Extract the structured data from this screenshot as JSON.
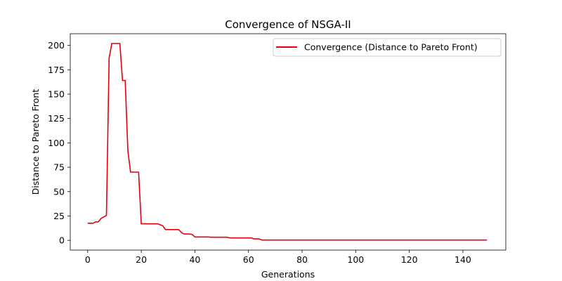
{
  "chart_data": {
    "type": "line",
    "title": "Convergence of NSGA-II",
    "xlabel": "Generations",
    "ylabel": "Distance to Pareto Front",
    "xlim": [
      -6.5,
      156
    ],
    "ylim": [
      -10,
      212
    ],
    "xticks": [
      0,
      20,
      40,
      60,
      80,
      100,
      120,
      140
    ],
    "yticks": [
      0,
      25,
      50,
      75,
      100,
      125,
      150,
      175,
      200
    ],
    "grid": false,
    "legend_position": "upper right",
    "series": [
      {
        "name": "Convergence (Distance to Pareto Front)",
        "color": "#e8000b",
        "x": [
          0,
          1,
          2,
          3,
          4,
          5,
          6,
          7,
          8,
          9,
          10,
          11,
          12,
          13,
          14,
          15,
          16,
          17,
          18,
          19,
          20,
          21,
          22,
          23,
          24,
          25,
          26,
          27,
          28,
          29,
          30,
          31,
          32,
          33,
          34,
          35,
          36,
          37,
          38,
          39,
          40,
          41,
          42,
          43,
          44,
          45,
          46,
          47,
          48,
          49,
          50,
          51,
          52,
          53,
          54,
          55,
          56,
          57,
          58,
          59,
          60,
          61,
          62,
          63,
          64,
          65,
          66,
          67,
          68,
          69,
          70,
          71,
          72,
          73,
          74,
          75,
          76,
          77,
          78,
          79,
          80,
          81,
          82,
          83,
          84,
          85,
          86,
          87,
          88,
          89,
          90,
          91,
          92,
          93,
          94,
          95,
          96,
          97,
          98,
          99,
          100,
          101,
          102,
          103,
          104,
          105,
          106,
          107,
          108,
          109,
          110,
          111,
          112,
          113,
          114,
          115,
          116,
          117,
          118,
          119,
          120,
          121,
          122,
          123,
          124,
          125,
          126,
          127,
          128,
          129,
          130,
          131,
          132,
          133,
          134,
          135,
          136,
          137,
          138,
          139,
          140,
          141,
          142,
          143,
          144,
          145,
          146,
          147,
          148,
          149
        ],
        "y": [
          17.5,
          17.5,
          17.5,
          19,
          19,
          22.5,
          24,
          25.5,
          187,
          202,
          202,
          202,
          202,
          164,
          164,
          92,
          70,
          70,
          70,
          70,
          17,
          17,
          17,
          17,
          17,
          17,
          17,
          16,
          15,
          11,
          11,
          11,
          11,
          11,
          11,
          8,
          6.5,
          6.5,
          6.5,
          6,
          3.5,
          3.5,
          3.5,
          3.5,
          3.5,
          3.5,
          3.2,
          3.2,
          3.2,
          3.2,
          3.2,
          3.2,
          3.2,
          2.5,
          2.5,
          2.5,
          2.5,
          2.5,
          2.5,
          2.5,
          2.5,
          2.5,
          1.5,
          1.5,
          1.5,
          0.3,
          0.3,
          0.3,
          0.3,
          0.3,
          0.3,
          0.3,
          0.3,
          0.3,
          0.3,
          0.3,
          0.3,
          0.3,
          0.3,
          0.3,
          0.3,
          0.3,
          0.3,
          0.3,
          0.3,
          0.3,
          0.3,
          0.3,
          0.3,
          0.3,
          0.3,
          0.3,
          0.3,
          0.3,
          0.3,
          0.3,
          0.3,
          0.3,
          0.3,
          0.3,
          0.3,
          0.3,
          0.3,
          0.3,
          0.3,
          0.3,
          0.3,
          0.3,
          0.3,
          0.3,
          0.3,
          0.3,
          0.3,
          0.3,
          0.3,
          0.3,
          0.3,
          0.3,
          0.3,
          0.3,
          0.3,
          0.3,
          0.3,
          0.3,
          0.3,
          0.3,
          0.3,
          0.3,
          0.3,
          0.3,
          0.3,
          0.3,
          0.3,
          0.3,
          0.3,
          0.3,
          0.3,
          0.3,
          0.3,
          0.3,
          0.3,
          0.3,
          0.3,
          0.3,
          0.3,
          0.3,
          0.3,
          0.3,
          0.3,
          0.3
        ]
      }
    ]
  }
}
